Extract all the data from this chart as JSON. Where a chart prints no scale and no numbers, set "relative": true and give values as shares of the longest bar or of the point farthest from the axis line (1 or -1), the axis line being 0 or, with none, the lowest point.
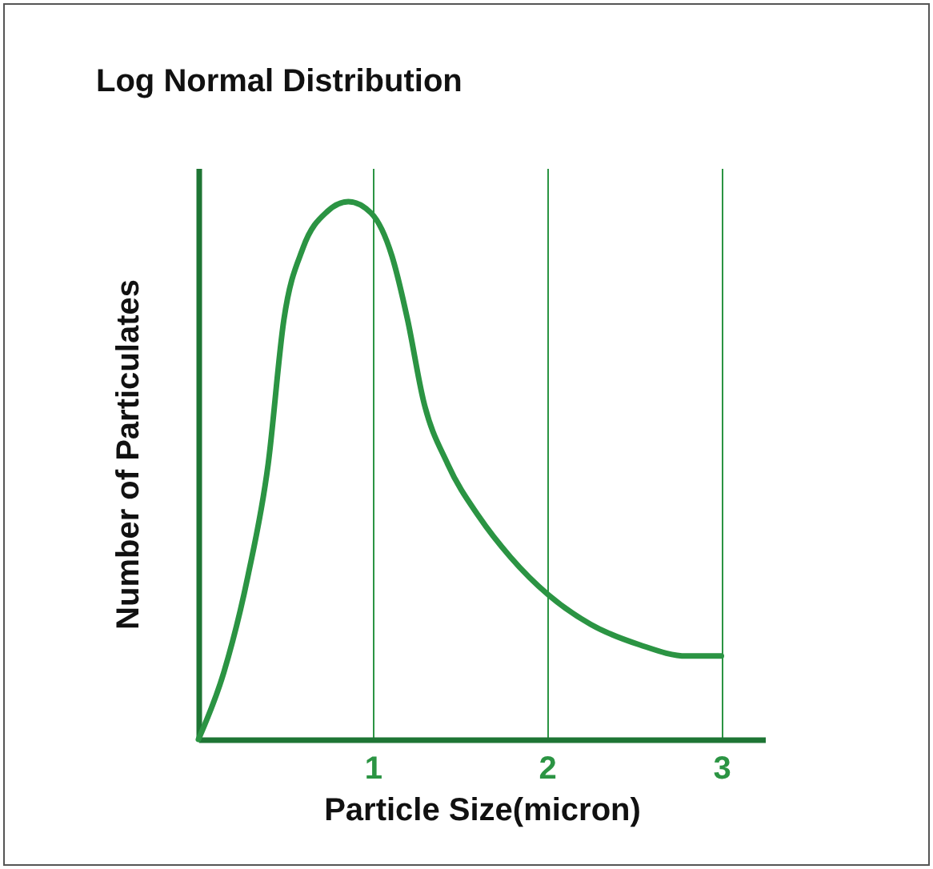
{
  "chart_data": {
    "type": "line",
    "title": "Log Normal Distribution",
    "xlabel": "Particle Size(micron)",
    "ylabel": "Number of Particulates",
    "relative": true,
    "x": [
      0,
      0.146,
      0.284,
      0.4,
      0.49,
      0.6,
      0.74,
      0.86,
      0.99,
      1.11,
      1.2,
      1.29,
      1.43,
      1.61,
      1.79,
      2.01,
      2.25,
      2.53,
      2.8,
      3.0
    ],
    "series": [
      {
        "color": "#2b9443",
        "values": [
          0,
          0.125,
          0.304,
          0.512,
          0.78,
          0.914,
          0.982,
          1,
          0.979,
          0.899,
          0.78,
          0.631,
          0.512,
          0.414,
          0.339,
          0.268,
          0.214,
          0.176,
          0.155,
          0.155
        ]
      }
    ],
    "xlim": [
      0,
      3.25
    ],
    "xticks": [
      1,
      2,
      3
    ],
    "grid": "x",
    "marker": "none",
    "line_style": "solid"
  }
}
